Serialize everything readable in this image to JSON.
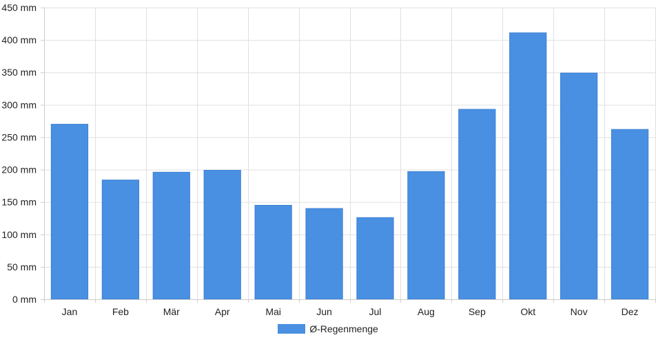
{
  "chart_data": {
    "type": "bar",
    "title": "",
    "xlabel": "",
    "ylabel": "",
    "categories": [
      "Jan",
      "Feb",
      "Mär",
      "Apr",
      "Mai",
      "Jun",
      "Jul",
      "Aug",
      "Sep",
      "Okt",
      "Nov",
      "Dez"
    ],
    "series": [
      {
        "name": "Ø-Regenmenge",
        "values": [
          270,
          184,
          196,
          199,
          145,
          140,
          126,
          197,
          293,
          411,
          349,
          262
        ]
      }
    ],
    "ylim": [
      0,
      450
    ],
    "yticks": [
      0,
      50,
      100,
      150,
      200,
      250,
      300,
      350,
      400,
      450
    ],
    "y_unit": " mm",
    "grid": true,
    "legend": "bottom-center",
    "colors": {
      "bar": "#4a90e2",
      "grid": "#e0e0e0",
      "axis": "#cccccc",
      "text": "#222222"
    }
  }
}
